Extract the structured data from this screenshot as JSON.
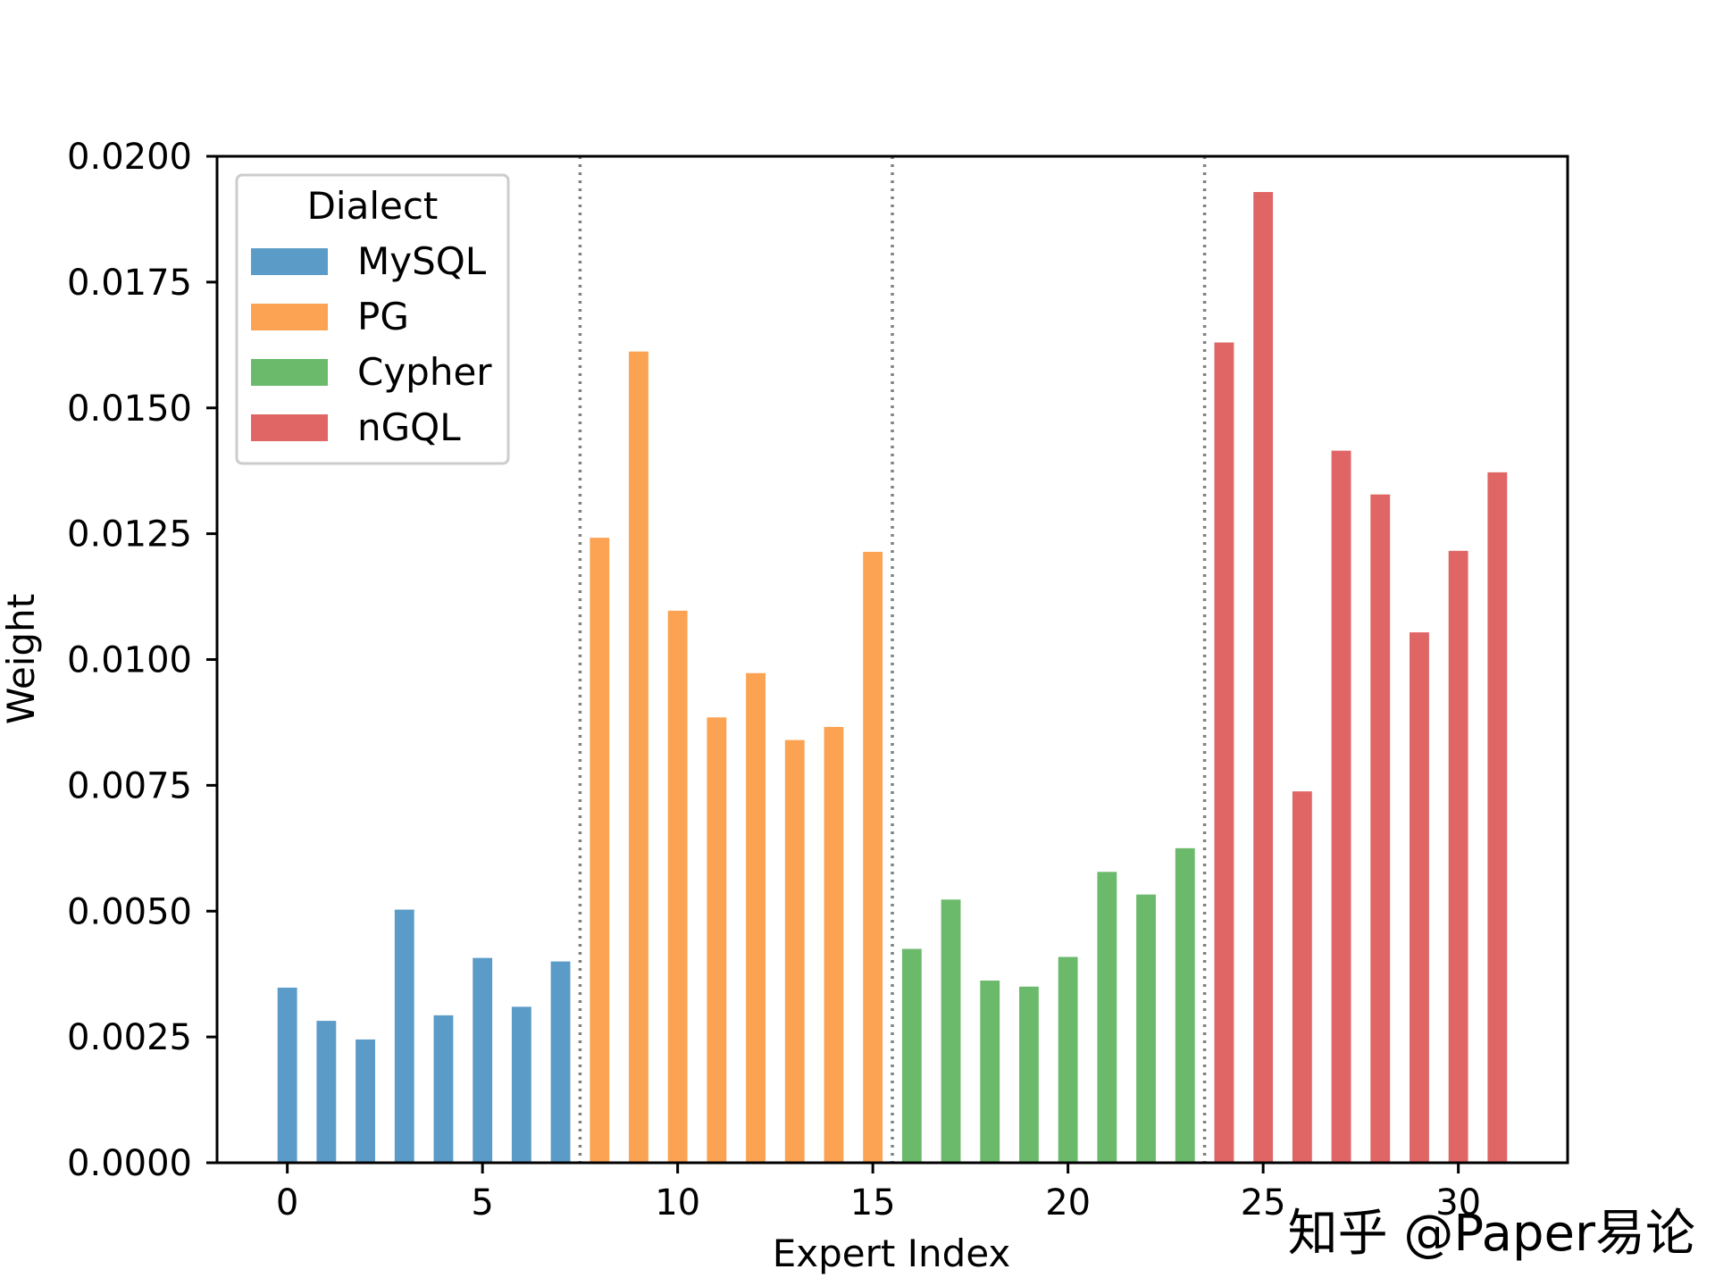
{
  "chart_data": {
    "type": "bar",
    "title": "",
    "xlabel": "Expert Index",
    "ylabel": "Weight",
    "xlim": [
      -1.8,
      32.8
    ],
    "ylim": [
      0,
      0.02
    ],
    "x_ticks": [
      0,
      5,
      10,
      15,
      20,
      25,
      30
    ],
    "y_ticks": [
      "0.0000",
      "0.0025",
      "0.0050",
      "0.0075",
      "0.0100",
      "0.0125",
      "0.0150",
      "0.0175",
      "0.0200"
    ],
    "grid": false,
    "group_dividers": [
      7.5,
      15.5,
      23.5
    ],
    "legend": {
      "title": "Dialect",
      "position": "top-left"
    },
    "series": [
      {
        "name": "MySQL",
        "color": "#5b9bc8",
        "x": [
          0,
          1,
          2,
          3,
          4,
          5,
          6,
          7
        ],
        "values": [
          0.00348,
          0.00282,
          0.00245,
          0.00503,
          0.00293,
          0.00407,
          0.0031,
          0.004
        ]
      },
      {
        "name": "PG",
        "color": "#fba353",
        "x": [
          8,
          9,
          10,
          11,
          12,
          13,
          14,
          15
        ],
        "values": [
          0.01242,
          0.01612,
          0.01097,
          0.00885,
          0.00973,
          0.0084,
          0.00866,
          0.01214
        ]
      },
      {
        "name": "Cypher",
        "color": "#6bba6b",
        "x": [
          16,
          17,
          18,
          19,
          20,
          21,
          22,
          23
        ],
        "values": [
          0.00425,
          0.00523,
          0.00362,
          0.0035,
          0.00409,
          0.00578,
          0.00533,
          0.00625
        ]
      },
      {
        "name": "nGQL",
        "color": "#e06565",
        "x": [
          24,
          25,
          26,
          27,
          28,
          29,
          30,
          31
        ],
        "values": [
          0.0163,
          0.01929,
          0.00738,
          0.01415,
          0.01328,
          0.01054,
          0.01216,
          0.01372
        ]
      }
    ]
  },
  "watermark": {
    "text": "知乎 @Paper易论"
  }
}
